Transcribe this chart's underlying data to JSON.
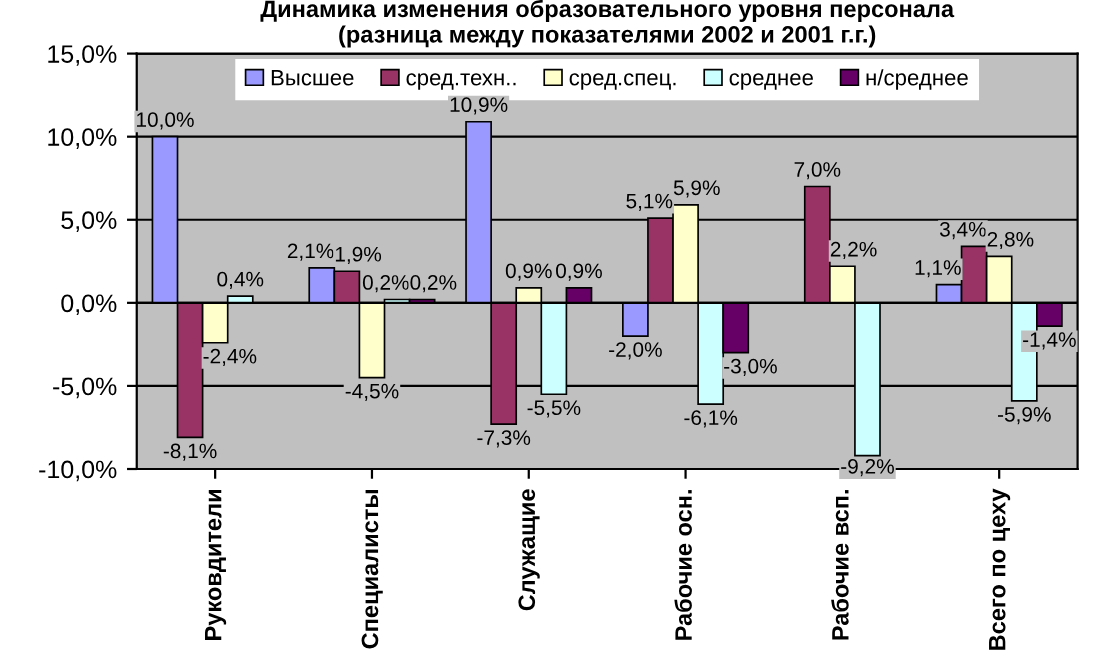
{
  "chart_data": {
    "type": "bar",
    "title": "Динамика изменения образовательного уровня персонала\n(разница между показателями 2002 и 2001 г.г.)",
    "categories": [
      "Руковдители",
      "Специалисты",
      "Служащие",
      "Рабочие осн.",
      "Рабочие всп.",
      "Всего по цеху"
    ],
    "series": [
      {
        "name": "Высшее",
        "color": "#9999ff",
        "values": [
          10.0,
          2.1,
          10.9,
          -2.0,
          null,
          1.1
        ],
        "value_labels": [
          "10,0%",
          "2,1%",
          "10,9%",
          "-2,0%",
          null,
          "1,1%"
        ]
      },
      {
        "name": "сред.техн..",
        "color": "#993366",
        "values": [
          -8.1,
          1.9,
          -7.3,
          5.1,
          7.0,
          3.4
        ],
        "value_labels": [
          "-8,1%",
          "1,9%",
          "-7,3%",
          "5,1%",
          "7,0%",
          "3,4%"
        ]
      },
      {
        "name": "сред.спец.",
        "color": "#ffffcc",
        "values": [
          -2.4,
          -4.5,
          0.9,
          5.9,
          2.2,
          2.8
        ],
        "value_labels": [
          "-2,4%",
          "-4,5%",
          "0,9%",
          "5,9%",
          "2,2%",
          "2,8%"
        ]
      },
      {
        "name": "среднее",
        "color": "#ccffff",
        "values": [
          0.4,
          0.2,
          -5.5,
          -6.1,
          -9.2,
          -5.9
        ],
        "value_labels": [
          "0,4%",
          "0,2%",
          "-5,5%",
          "-6,1%",
          "-9,2%",
          "-5,9%"
        ]
      },
      {
        "name": "н/среднее",
        "color": "#660066",
        "values": [
          null,
          0.2,
          0.9,
          -3.0,
          null,
          -1.4
        ],
        "value_labels": [
          null,
          "0,2%",
          "0,9%",
          "-3,0%",
          null,
          "-1,4%"
        ]
      }
    ],
    "ylim": [
      -10,
      15
    ],
    "yticks": [
      {
        "value": -10,
        "label": "-10,0%"
      },
      {
        "value": -5,
        "label": "-5,0%"
      },
      {
        "value": 0,
        "label": "0,0%"
      },
      {
        "value": 5,
        "label": "5,0%"
      },
      {
        "value": 10,
        "label": "10,0%"
      },
      {
        "value": 15,
        "label": "15,0%"
      }
    ],
    "grid": "y",
    "legend": "top"
  }
}
